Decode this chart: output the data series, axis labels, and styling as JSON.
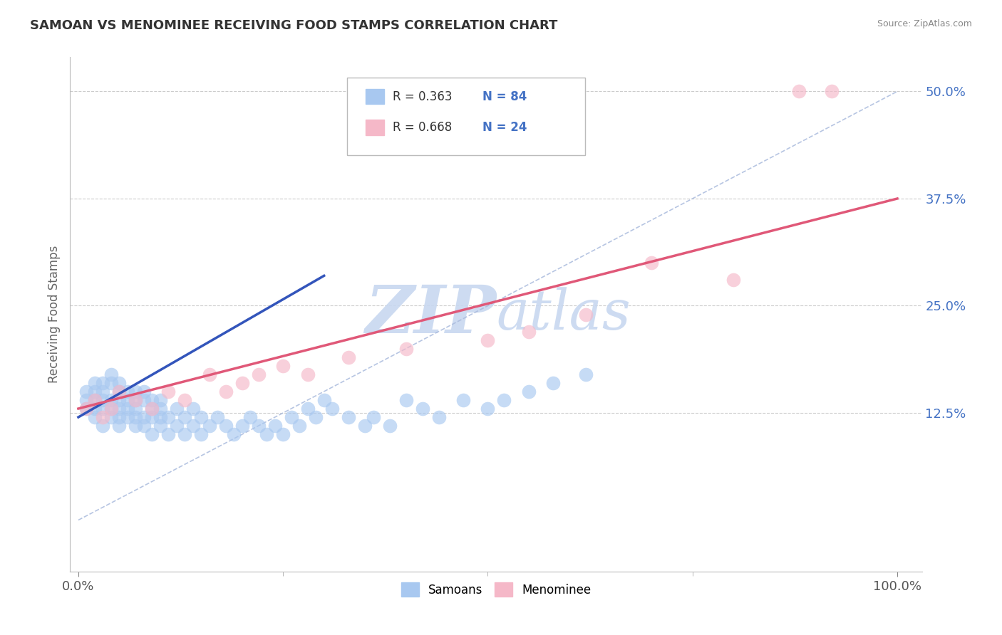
{
  "title": "SAMOAN VS MENOMINEE RECEIVING FOOD STAMPS CORRELATION CHART",
  "source": "Source: ZipAtlas.com",
  "ylabel": "Receiving Food Stamps",
  "xlim": [
    0,
    100
  ],
  "ylim": [
    0,
    52
  ],
  "xticks": [
    0,
    100
  ],
  "xticklabels": [
    "0.0%",
    "100.0%"
  ],
  "yticks": [
    12.5,
    25.0,
    37.5,
    50.0
  ],
  "yticklabels": [
    "12.5%",
    "25.0%",
    "37.5%",
    "50.0%"
  ],
  "samoan_color": "#a8c8f0",
  "samoan_edge_color": "#7ab0e8",
  "menominee_color": "#f5b8c8",
  "menominee_edge_color": "#e890a8",
  "blue_line_color": "#3355bb",
  "pink_line_color": "#e05878",
  "ref_line_color": "#aabbdd",
  "grid_color": "#cccccc",
  "watermark_color": "#c8d8f0",
  "legend_box_color": "#dddddd",
  "title_color": "#333333",
  "ytick_color": "#4472c4",
  "samoan_x": [
    1,
    1,
    1,
    2,
    2,
    2,
    2,
    2,
    3,
    3,
    3,
    3,
    3,
    4,
    4,
    4,
    4,
    4,
    5,
    5,
    5,
    5,
    5,
    5,
    6,
    6,
    6,
    6,
    7,
    7,
    7,
    7,
    7,
    8,
    8,
    8,
    8,
    9,
    9,
    9,
    9,
    10,
    10,
    10,
    10,
    11,
    11,
    12,
    12,
    13,
    13,
    14,
    14,
    15,
    15,
    16,
    17,
    18,
    19,
    20,
    21,
    22,
    23,
    24,
    25,
    26,
    27,
    28,
    29,
    30,
    31,
    33,
    35,
    36,
    38,
    40,
    42,
    44,
    47,
    50,
    52,
    55,
    58,
    62
  ],
  "samoan_y": [
    13,
    14,
    15,
    12,
    13,
    14,
    15,
    16,
    11,
    13,
    14,
    15,
    16,
    12,
    13,
    14,
    16,
    17,
    11,
    12,
    13,
    14,
    15,
    16,
    12,
    13,
    14,
    15,
    11,
    12,
    13,
    14,
    15,
    11,
    12,
    14,
    15,
    10,
    12,
    13,
    14,
    11,
    12,
    13,
    14,
    10,
    12,
    11,
    13,
    10,
    12,
    11,
    13,
    10,
    12,
    11,
    12,
    11,
    10,
    11,
    12,
    11,
    10,
    11,
    10,
    12,
    11,
    13,
    12,
    14,
    13,
    12,
    11,
    12,
    11,
    14,
    13,
    12,
    14,
    13,
    14,
    15,
    16,
    17
  ],
  "menominee_x": [
    1,
    2,
    3,
    4,
    5,
    7,
    9,
    11,
    13,
    16,
    18,
    20,
    22,
    25,
    28,
    33,
    40,
    50,
    55,
    62,
    70,
    80,
    88,
    92
  ],
  "menominee_y": [
    13,
    14,
    12,
    13,
    15,
    14,
    13,
    15,
    14,
    17,
    15,
    16,
    17,
    18,
    17,
    19,
    20,
    21,
    22,
    24,
    30,
    28,
    50,
    50
  ],
  "blue_line_x": [
    0,
    30
  ],
  "blue_line_y_intercept": 12.0,
  "blue_line_slope": 0.55,
  "pink_line_x": [
    0,
    100
  ],
  "pink_line_y_intercept": 13.0,
  "pink_line_slope": 0.245,
  "ref_line_x": [
    0,
    100
  ],
  "ref_line_y": [
    0,
    50
  ]
}
